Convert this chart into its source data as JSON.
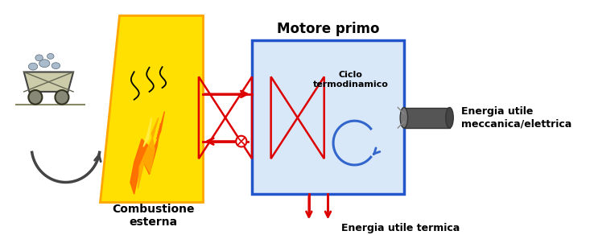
{
  "bg_color": "#ffffff",
  "yellow_color": "#FFE000",
  "yellow_edge": "#FFA500",
  "blue_box_color": "#D8E8F8",
  "blue_box_edge": "#2255CC",
  "red_color": "#DD0000",
  "blue_arrow_color": "#3366CC",
  "shaft_color": "#555555",
  "text_color": "#000000",
  "label_combustione": "Combustione\nesterna",
  "label_motore": "Motore primo",
  "label_ciclo": "Ciclo\ntermodinamico",
  "label_energia_mec": "Energia utile\nmeccanica/elettrica",
  "label_energia_ter": "Energia utile termica"
}
